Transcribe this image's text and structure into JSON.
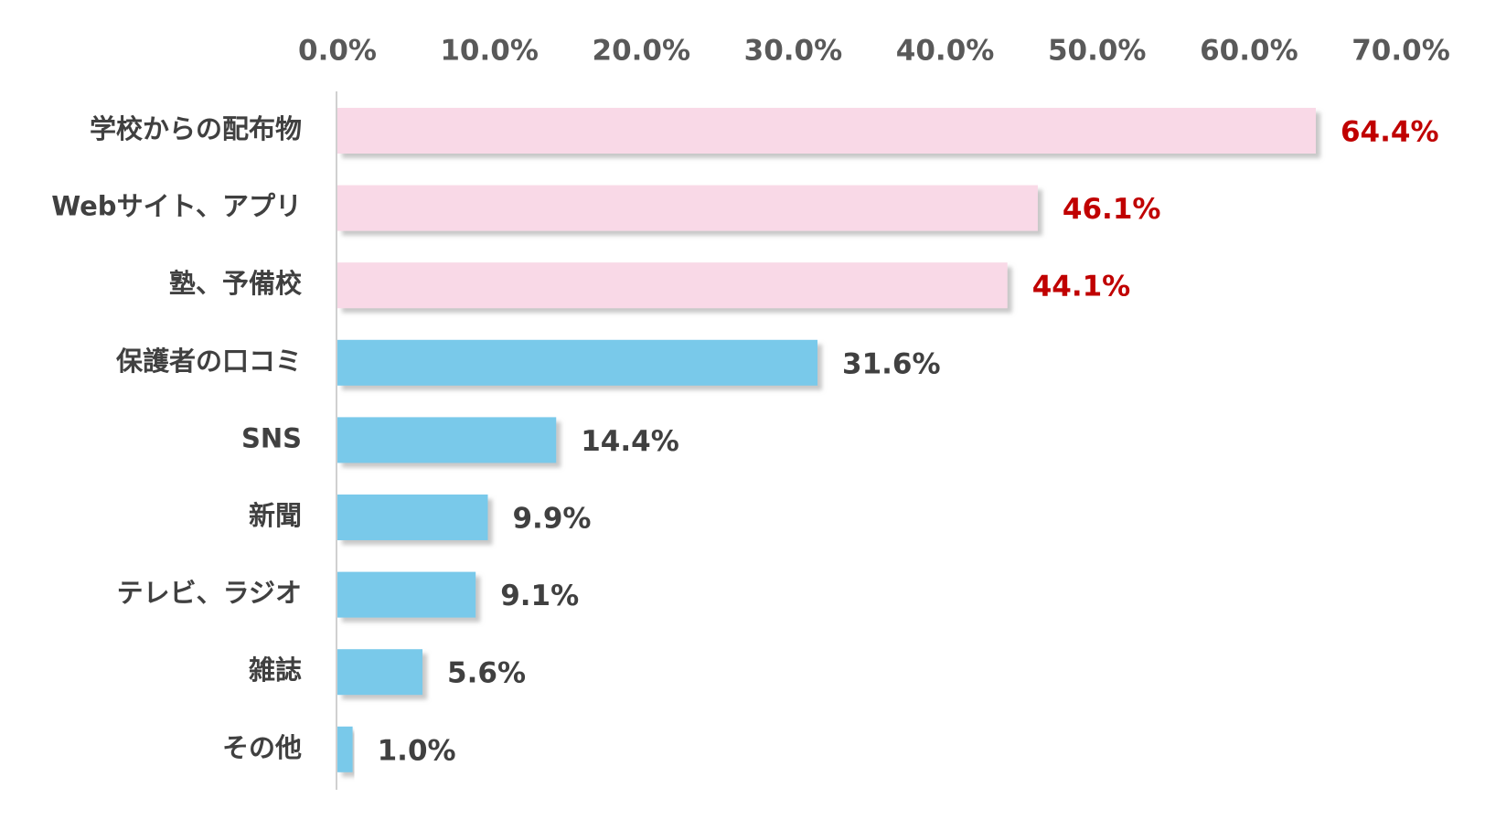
{
  "chart_data": {
    "type": "bar",
    "orientation": "horizontal",
    "title": "",
    "xlabel": "",
    "ylabel": "",
    "xlim": [
      0,
      70
    ],
    "x_ticks": [
      0,
      10,
      20,
      30,
      40,
      50,
      60,
      70
    ],
    "x_tick_labels": [
      "0.0%",
      "10.0%",
      "20.0%",
      "30.0%",
      "40.0%",
      "50.0%",
      "60.0%",
      "70.0%"
    ],
    "x_axis_position": "top",
    "grid": false,
    "legend": "none",
    "categories": [
      "学校からの配布物",
      "Webサイト、アプリ",
      "塾、予備校",
      "保護者の口コミ",
      "SNS",
      "新聞",
      "テレビ、ラジオ",
      "雑誌",
      "その他"
    ],
    "values": [
      64.4,
      46.1,
      44.1,
      31.6,
      14.4,
      9.9,
      9.1,
      5.6,
      1.0
    ],
    "value_labels": [
      "64.4%",
      "46.1%",
      "44.1%",
      "31.6%",
      "14.4%",
      "9.9%",
      "9.1%",
      "5.6%",
      "1.0%"
    ],
    "highlight_top_n": 3,
    "colors": {
      "highlight_bar": "#f9d9e7",
      "normal_bar": "#79c9ea",
      "highlight_label": "#c00000",
      "normal_label": "#404040",
      "tick_label": "#595959",
      "axis_line": "#d0d0d0",
      "bar_shadow": "#bfbfbf"
    }
  }
}
